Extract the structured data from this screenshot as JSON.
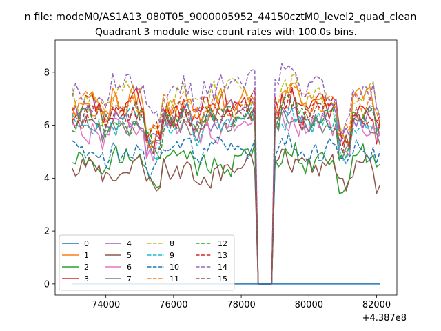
{
  "figure": {
    "suptitle": "n file: modeM0/AS1A13_080T05_9000005952_44150cztM0_level2_quad_clean",
    "title": "Quadrant 3 module wise count rates with 100.0s bins.",
    "x_offset_label": "+4.387e8"
  },
  "chart_data": {
    "type": "line",
    "title": "Quadrant 3 module wise count rates with 100.0s bins.",
    "xlabel": "",
    "ylabel": "",
    "x_offset": 438700000,
    "xlim": [
      72500,
      82600
    ],
    "ylim": [
      -0.42,
      9.22
    ],
    "xticks": [
      74000,
      76000,
      78000,
      80000,
      82000
    ],
    "xtick_labels": [
      "74000",
      "76000",
      "78000",
      "80000",
      "82000"
    ],
    "yticks": [
      0,
      2,
      4,
      6,
      8
    ],
    "ytick_labels": [
      "0",
      "2",
      "4",
      "6",
      "8"
    ],
    "grid": false,
    "legend_position": "lower-left",
    "legend_columns": 4,
    "x_start": 73000,
    "x_step": 100,
    "x_end": 82100,
    "gap": {
      "start": 78500,
      "end": 78900,
      "value": 0
    },
    "series": [
      {
        "name": "0",
        "color": "#1f77b4",
        "dash": "solid",
        "level": 0.0,
        "amp": 0.0
      },
      {
        "name": "1",
        "color": "#ff7f0e",
        "dash": "solid",
        "level": 6.9,
        "amp": 0.35
      },
      {
        "name": "2",
        "color": "#2ca02c",
        "dash": "solid",
        "level": 4.7,
        "amp": 0.3
      },
      {
        "name": "3",
        "color": "#d62728",
        "dash": "solid",
        "level": 6.6,
        "amp": 0.35
      },
      {
        "name": "4",
        "color": "#9467bd",
        "dash": "solid",
        "level": 6.3,
        "amp": 0.3
      },
      {
        "name": "5",
        "color": "#8c564b",
        "dash": "solid",
        "level": 4.3,
        "amp": 0.3
      },
      {
        "name": "6",
        "color": "#e377c2",
        "dash": "solid",
        "level": 5.9,
        "amp": 0.3
      },
      {
        "name": "7",
        "color": "#7f7f7f",
        "dash": "solid",
        "level": 6.0,
        "amp": 0.25
      },
      {
        "name": "8",
        "color": "#bcbd22",
        "dash": "dashed",
        "level": 7.1,
        "amp": 0.35
      },
      {
        "name": "9",
        "color": "#17becf",
        "dash": "dashed",
        "level": 6.1,
        "amp": 0.3
      },
      {
        "name": "10",
        "color": "#1f77b4",
        "dash": "dashed",
        "level": 5.0,
        "amp": 0.3
      },
      {
        "name": "11",
        "color": "#ff7f0e",
        "dash": "dashed",
        "level": 6.7,
        "amp": 0.3
      },
      {
        "name": "12",
        "color": "#2ca02c",
        "dash": "dashed",
        "level": 6.2,
        "amp": 0.3
      },
      {
        "name": "13",
        "color": "#d62728",
        "dash": "dashed",
        "level": 6.5,
        "amp": 0.3
      },
      {
        "name": "14",
        "color": "#9467bd",
        "dash": "dashed",
        "level": 7.4,
        "amp": 0.35
      },
      {
        "name": "15",
        "color": "#8c564b",
        "dash": "dashed",
        "level": 6.4,
        "amp": 0.3
      }
    ]
  }
}
